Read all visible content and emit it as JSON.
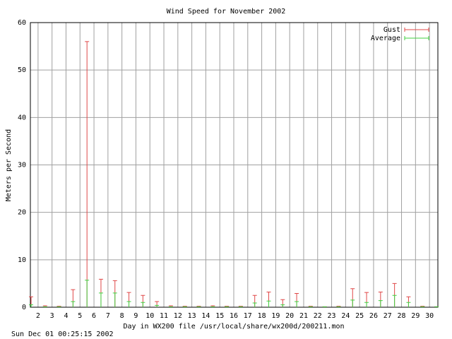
{
  "chart_data": {
    "type": "errorbar",
    "title": "Wind Speed for November 2002",
    "xlabel": "Day in WX200 file /usr/local/share/wx200d/200211.mon",
    "ylabel": "Meters per Second",
    "timestamp": "Sun Dec 01 00:25:15 2002",
    "x": [
      1.5,
      2.5,
      3.5,
      4.5,
      5.5,
      6.5,
      7.5,
      8.5,
      9.5,
      10.5,
      11.5,
      12.5,
      13.5,
      14.5,
      15.5,
      16.5,
      17.5,
      18.5,
      19.5,
      20.5,
      21.5,
      22.5,
      23.5,
      24.5,
      25.5,
      26.5,
      27.5,
      28.5,
      29.5,
      30.5
    ],
    "series": [
      {
        "name": "Gust",
        "color": "#e04848",
        "values": [
          2.2,
          0.3,
          0.2,
          3.7,
          56,
          5.9,
          5.6,
          3.1,
          2.5,
          1.2,
          0.3,
          0.2,
          0.2,
          0.3,
          0.2,
          0.2,
          2.5,
          3.2,
          1.6,
          2.9,
          0.2,
          0.1,
          0.2,
          3.9,
          3.1,
          3.2,
          5.0,
          2.2,
          0.2,
          0.1
        ]
      },
      {
        "name": "Average",
        "color": "#40d040",
        "values": [
          0.5,
          0.1,
          0.1,
          1.2,
          5.7,
          3.0,
          3.0,
          1.2,
          1.0,
          0.4,
          0.1,
          0.1,
          0.1,
          0.1,
          0.1,
          0.1,
          0.9,
          1.3,
          0.5,
          1.2,
          0.1,
          0.1,
          0.1,
          1.5,
          1.0,
          1.4,
          2.5,
          1.0,
          0.1,
          0.1
        ]
      }
    ],
    "xlim": [
      1.45,
      30.6
    ],
    "xticks": [
      2,
      3,
      4,
      5,
      6,
      7,
      8,
      9,
      10,
      11,
      12,
      13,
      14,
      15,
      16,
      17,
      18,
      19,
      20,
      21,
      22,
      23,
      24,
      25,
      26,
      27,
      28,
      29,
      30
    ],
    "ylim": [
      0,
      60
    ],
    "yticks": [
      0,
      10,
      20,
      30,
      40,
      50,
      60
    ],
    "grid": true,
    "legend": "top-right"
  }
}
